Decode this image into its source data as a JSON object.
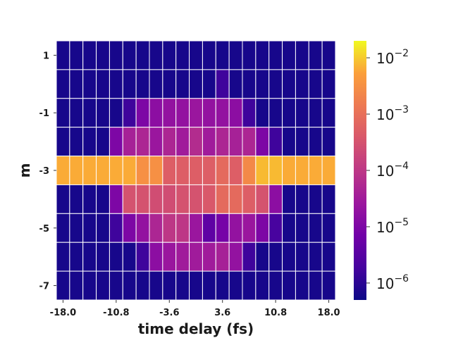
{
  "chart_data": {
    "type": "heatmap",
    "xlabel": "time delay (fs)",
    "ylabel": "m",
    "x_tick_labels": [
      "-18.0",
      "-10.8",
      "-3.6",
      "3.6",
      "10.8",
      "18.0"
    ],
    "y_tick_labels": [
      "1",
      "-1",
      "-3",
      "-5",
      "-7"
    ],
    "x": [
      -18.0,
      -16.2,
      -14.4,
      -12.6,
      -10.8,
      -9.0,
      -7.2,
      -5.4,
      -3.6,
      -1.8,
      0.0,
      1.8,
      3.6,
      5.4,
      7.2,
      9.0,
      10.8,
      12.6,
      14.4,
      16.2,
      18.0
    ],
    "y": [
      1,
      0,
      -1,
      -2,
      -3,
      -4,
      -5,
      -6,
      -7
    ],
    "colorscale": {
      "name": "plasma",
      "log": true,
      "vmin": 5e-07,
      "vmax": 0.02,
      "tick_values": [
        1e-06,
        1e-05,
        0.0001,
        0.001,
        0.01
      ],
      "tick_labels": [
        {
          "base": "10",
          "exp": "−6"
        },
        {
          "base": "10",
          "exp": "−5"
        },
        {
          "base": "10",
          "exp": "−4"
        },
        {
          "base": "10",
          "exp": "−3"
        },
        {
          "base": "10",
          "exp": "−2"
        }
      ]
    },
    "values_log10": [
      [
        -6.2,
        -6.2,
        -6.2,
        -6.2,
        -6.2,
        -6.2,
        -6.2,
        -6.2,
        -6.2,
        -6.2,
        -6.2,
        -6.2,
        -6.2,
        -6.2,
        -6.2,
        -6.2,
        -6.2,
        -6.2,
        -6.2,
        -6.2,
        -6.2
      ],
      [
        -6.2,
        -6.2,
        -6.2,
        -6.2,
        -6.2,
        -6.2,
        -6.2,
        -6.2,
        -6.2,
        -6.2,
        -6.2,
        -6.2,
        -5.8,
        -6.2,
        -6.2,
        -6.2,
        -6.2,
        -6.2,
        -6.2,
        -6.2,
        -6.2
      ],
      [
        -6.2,
        -6.2,
        -6.2,
        -6.2,
        -6.2,
        -5.8,
        -5.0,
        -4.8,
        -4.7,
        -4.7,
        -4.6,
        -4.7,
        -4.7,
        -4.8,
        -5.8,
        -6.2,
        -6.2,
        -6.2,
        -6.2,
        -6.2,
        -6.2
      ],
      [
        -6.2,
        -6.2,
        -6.2,
        -6.2,
        -5.0,
        -4.4,
        -4.3,
        -4.6,
        -4.3,
        -4.5,
        -4.2,
        -4.5,
        -4.3,
        -4.4,
        -4.3,
        -5.0,
        -5.8,
        -6.2,
        -6.2,
        -6.2,
        -6.2
      ],
      [
        -2.2,
        -2.2,
        -2.2,
        -2.2,
        -2.2,
        -2.2,
        -2.5,
        -2.5,
        -3.3,
        -3.3,
        -3.3,
        -3.3,
        -3.1,
        -3.3,
        -2.6,
        -2.1,
        -2.1,
        -2.2,
        -2.2,
        -2.2,
        -2.2
      ],
      [
        -6.2,
        -6.2,
        -6.2,
        -6.2,
        -5.0,
        -3.5,
        -3.5,
        -3.6,
        -3.6,
        -3.5,
        -3.5,
        -3.4,
        -3.1,
        -3.1,
        -3.3,
        -3.5,
        -4.8,
        -6.2,
        -6.2,
        -6.2,
        -6.2
      ],
      [
        -6.2,
        -6.2,
        -6.2,
        -6.2,
        -5.8,
        -5.0,
        -4.7,
        -4.3,
        -4.0,
        -4.0,
        -4.6,
        -5.4,
        -5.1,
        -4.7,
        -4.6,
        -5.0,
        -5.7,
        -6.2,
        -6.2,
        -6.2,
        -6.2
      ],
      [
        -6.2,
        -6.2,
        -6.2,
        -6.2,
        -6.2,
        -6.2,
        -5.8,
        -4.8,
        -4.6,
        -4.5,
        -4.5,
        -4.5,
        -4.4,
        -4.7,
        -5.8,
        -6.2,
        -6.2,
        -6.2,
        -6.2,
        -6.2,
        -6.2
      ],
      [
        -6.2,
        -6.2,
        -6.2,
        -6.2,
        -6.2,
        -6.2,
        -6.2,
        -6.2,
        -6.2,
        -6.2,
        -6.2,
        -6.2,
        -6.2,
        -6.2,
        -6.2,
        -6.2,
        -6.2,
        -6.2,
        -6.2,
        -6.2,
        -6.2
      ]
    ]
  }
}
